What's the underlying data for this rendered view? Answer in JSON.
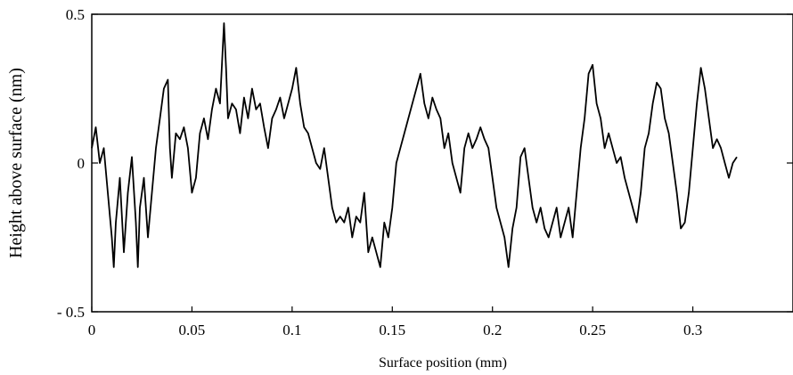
{
  "chart_data": {
    "type": "line",
    "title": "",
    "xlabel": "Surface position (mm)",
    "ylabel": "Height above surface (nm)",
    "xlim": [
      0,
      0.35
    ],
    "ylim": [
      -0.5,
      0.5
    ],
    "grid": false,
    "legend": "none",
    "x_ticks": [
      0,
      0.05,
      0.1,
      0.15,
      0.2,
      0.25,
      0.3
    ],
    "x_tick_labels": [
      "0",
      "0.05",
      "0.1",
      "0.15",
      "0.2",
      "0.25",
      "0.3"
    ],
    "y_ticks": [
      -0.5,
      0,
      0.5
    ],
    "y_tick_labels": [
      "- 0.5",
      "0",
      "0.5"
    ],
    "line_color": "#000000",
    "series": [
      {
        "x": [
          0,
          0.002,
          0.004,
          0.006,
          0.008,
          0.01,
          0.011,
          0.012,
          0.014,
          0.016,
          0.018,
          0.02,
          0.022,
          0.023,
          0.024,
          0.026,
          0.028,
          0.03,
          0.032,
          0.034,
          0.036,
          0.038,
          0.039,
          0.04,
          0.042,
          0.044,
          0.046,
          0.048,
          0.05,
          0.052,
          0.054,
          0.056,
          0.058,
          0.06,
          0.062,
          0.064,
          0.066,
          0.067,
          0.068,
          0.07,
          0.072,
          0.074,
          0.076,
          0.078,
          0.08,
          0.082,
          0.084,
          0.086,
          0.088,
          0.09,
          0.092,
          0.094,
          0.096,
          0.098,
          0.1,
          0.102,
          0.104,
          0.106,
          0.108,
          0.11,
          0.112,
          0.114,
          0.116,
          0.118,
          0.12,
          0.122,
          0.124,
          0.126,
          0.128,
          0.13,
          0.132,
          0.134,
          0.136,
          0.138,
          0.14,
          0.142,
          0.144,
          0.146,
          0.148,
          0.15,
          0.152,
          0.154,
          0.156,
          0.158,
          0.16,
          0.162,
          0.164,
          0.166,
          0.168,
          0.17,
          0.172,
          0.174,
          0.176,
          0.178,
          0.18,
          0.182,
          0.184,
          0.186,
          0.188,
          0.19,
          0.192,
          0.194,
          0.196,
          0.198,
          0.2,
          0.202,
          0.204,
          0.206,
          0.208,
          0.21,
          0.212,
          0.214,
          0.216,
          0.218,
          0.22,
          0.222,
          0.224,
          0.226,
          0.228,
          0.23,
          0.232,
          0.234,
          0.236,
          0.238,
          0.24,
          0.242,
          0.244,
          0.246,
          0.248,
          0.25,
          0.252,
          0.254,
          0.256,
          0.258,
          0.26,
          0.262,
          0.264,
          0.266,
          0.268,
          0.27,
          0.272,
          0.274,
          0.276,
          0.278,
          0.28,
          0.282,
          0.284,
          0.286,
          0.288,
          0.29,
          0.292,
          0.294,
          0.296,
          0.298,
          0.3,
          0.302,
          0.304,
          0.306,
          0.308,
          0.31,
          0.312,
          0.314,
          0.316,
          0.318,
          0.32,
          0.322
        ],
        "values": [
          0.05,
          0.12,
          0.0,
          0.05,
          -0.1,
          -0.25,
          -0.35,
          -0.2,
          -0.05,
          -0.3,
          -0.1,
          0.02,
          -0.2,
          -0.35,
          -0.15,
          -0.05,
          -0.25,
          -0.1,
          0.05,
          0.15,
          0.25,
          0.28,
          0.05,
          -0.05,
          0.1,
          0.08,
          0.12,
          0.05,
          -0.1,
          -0.05,
          0.1,
          0.15,
          0.08,
          0.18,
          0.25,
          0.2,
          0.47,
          0.32,
          0.15,
          0.2,
          0.18,
          0.1,
          0.22,
          0.15,
          0.25,
          0.18,
          0.2,
          0.12,
          0.05,
          0.15,
          0.18,
          0.22,
          0.15,
          0.2,
          0.25,
          0.32,
          0.2,
          0.12,
          0.1,
          0.05,
          0.0,
          -0.02,
          0.05,
          -0.05,
          -0.15,
          -0.2,
          -0.18,
          -0.2,
          -0.15,
          -0.25,
          -0.18,
          -0.2,
          -0.1,
          -0.3,
          -0.25,
          -0.3,
          -0.35,
          -0.2,
          -0.25,
          -0.15,
          0.0,
          0.05,
          0.1,
          0.15,
          0.2,
          0.25,
          0.3,
          0.2,
          0.15,
          0.22,
          0.18,
          0.15,
          0.05,
          0.1,
          0.0,
          -0.05,
          -0.1,
          0.05,
          0.1,
          0.05,
          0.08,
          0.12,
          0.08,
          0.05,
          -0.05,
          -0.15,
          -0.2,
          -0.25,
          -0.35,
          -0.22,
          -0.15,
          0.02,
          0.05,
          -0.05,
          -0.15,
          -0.2,
          -0.15,
          -0.22,
          -0.25,
          -0.2,
          -0.15,
          -0.25,
          -0.2,
          -0.15,
          -0.25,
          -0.1,
          0.05,
          0.15,
          0.3,
          0.33,
          0.2,
          0.15,
          0.05,
          0.1,
          0.05,
          0.0,
          0.02,
          -0.05,
          -0.1,
          -0.15,
          -0.2,
          -0.1,
          0.05,
          0.1,
          0.2,
          0.27,
          0.25,
          0.15,
          0.1,
          0.0,
          -0.1,
          -0.22,
          -0.2,
          -0.1,
          0.05,
          0.2,
          0.32,
          0.25,
          0.15,
          0.05,
          0.08,
          0.05,
          0.0,
          -0.05,
          0.0,
          0.02
        ]
      }
    ]
  }
}
